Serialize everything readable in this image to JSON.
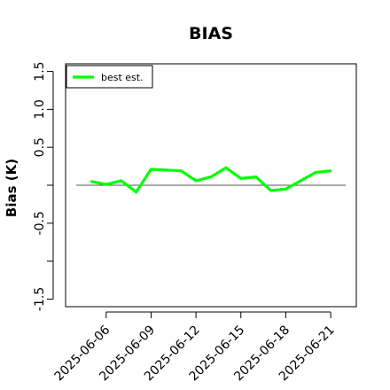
{
  "chart_data": {
    "type": "line",
    "title": "BIAS",
    "xlabel": "",
    "ylabel": "Bias (K)",
    "ylim": [
      -1.6,
      1.6
    ],
    "y_ticks": [
      {
        "value": -1.5,
        "label": "-1.5"
      },
      {
        "value": -1.0,
        "label": ""
      },
      {
        "value": -0.5,
        "label": "-0.5"
      },
      {
        "value": 0.0,
        "label": ""
      },
      {
        "value": 0.5,
        "label": "0.5"
      },
      {
        "value": 1.0,
        "label": "1.0"
      },
      {
        "value": 1.5,
        "label": "1.5"
      }
    ],
    "x_start": "2025-06-04",
    "x_end": "2025-06-22",
    "x_ticks": [
      "2025-06-06",
      "2025-06-09",
      "2025-06-12",
      "2025-06-15",
      "2025-06-18",
      "2025-06-21"
    ],
    "reference_line": 0,
    "legend": {
      "position": "top-left"
    },
    "colors": {
      "series": "#00ff00",
      "reference": "#555555",
      "frame": "#000000"
    },
    "series": [
      {
        "name": "best est.",
        "x": [
          "2025-06-05",
          "2025-06-06",
          "2025-06-07",
          "2025-06-08",
          "2025-06-09",
          "2025-06-11",
          "2025-06-12",
          "2025-06-13",
          "2025-06-14",
          "2025-06-15",
          "2025-06-16",
          "2025-06-17",
          "2025-06-18",
          "2025-06-19",
          "2025-06-20",
          "2025-06-21"
        ],
        "values": [
          0.05,
          0.01,
          0.06,
          -0.09,
          0.21,
          0.19,
          0.06,
          0.11,
          0.23,
          0.09,
          0.11,
          -0.07,
          -0.05,
          0.06,
          0.17,
          0.19
        ]
      }
    ]
  }
}
